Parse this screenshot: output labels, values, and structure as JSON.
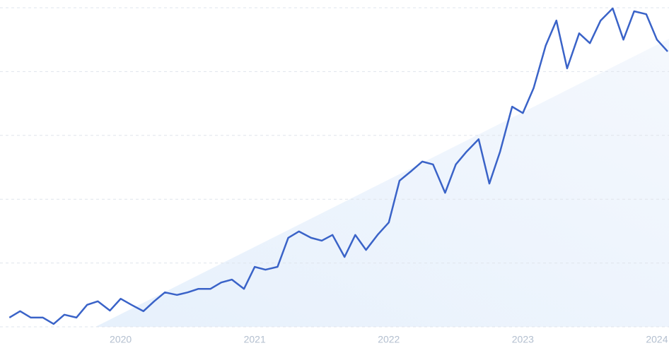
{
  "chart_data": {
    "type": "line",
    "x": [
      2019.17,
      2019.25,
      2019.33,
      2019.42,
      2019.5,
      2019.58,
      2019.67,
      2019.75,
      2019.83,
      2019.92,
      2020,
      2020.08,
      2020.17,
      2020.25,
      2020.33,
      2020.42,
      2020.5,
      2020.58,
      2020.67,
      2020.75,
      2020.83,
      2020.92,
      2021,
      2021.08,
      2021.17,
      2021.25,
      2021.33,
      2021.42,
      2021.5,
      2021.58,
      2021.67,
      2021.75,
      2021.83,
      2021.92,
      2022,
      2022.08,
      2022.17,
      2022.25,
      2022.33,
      2022.42,
      2022.5,
      2022.58,
      2022.67,
      2022.75,
      2022.83,
      2022.92,
      2023,
      2023.08,
      2023.17,
      2023.25,
      2023.33,
      2023.42,
      2023.5,
      2023.58,
      2023.67,
      2023.75,
      2023.83,
      2023.92,
      2024,
      2024.08
    ],
    "series": [
      {
        "color": "#3a63c8",
        "values": [
          2.9,
          4.9,
          2.9,
          2.9,
          0.9,
          3.8,
          2.9,
          6.9,
          8.0,
          5.1,
          8.8,
          6.9,
          4.9,
          8.0,
          10.8,
          10.0,
          10.8,
          11.9,
          11.9,
          13.9,
          14.8,
          11.9,
          18.8,
          17.9,
          18.8,
          27.9,
          29.9,
          27.9,
          27.0,
          28.8,
          21.9,
          28.8,
          24.1,
          29.0,
          32.7,
          45.8,
          48.9,
          51.8,
          50.9,
          42.0,
          50.9,
          54.9,
          58.8,
          44.9,
          54.9,
          69.0,
          67.0,
          74.8,
          88.1,
          96.0,
          81.0,
          92.0,
          88.9,
          96.0,
          99.8,
          90.0,
          98.9,
          98.0,
          90.0,
          86.3
        ]
      }
    ],
    "xlim": [
      2019.1,
      2024.09
    ],
    "xticks": [
      2020,
      2021,
      2022,
      2023,
      2024
    ],
    "ylim": [
      0,
      100
    ],
    "yticks": [
      0,
      20,
      40,
      60,
      80,
      100
    ],
    "grid": true
  }
}
